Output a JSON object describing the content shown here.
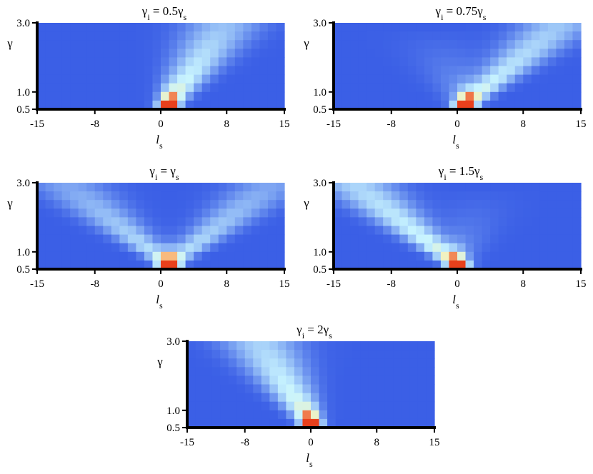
{
  "chart_data": [
    {
      "type": "heatmap",
      "title": {
        "pre": "γ",
        "sub1": "i",
        "mid": " = 0.5γ",
        "sub2": "s"
      },
      "xlabel": {
        "main": "l",
        "sub": "s"
      },
      "ylabel": "γ",
      "xticks": [
        "-15",
        "-8",
        "0",
        "8",
        "15"
      ],
      "yticks": [
        "0.5",
        "1.0",
        "3.0"
      ],
      "xlim": [
        -15,
        15
      ],
      "ylim": [
        0.5,
        3.0
      ],
      "peak_l": 1,
      "shape": "right-leaning",
      "colors": {
        "low": "#3b5fe6",
        "mid": "#c8f4ff",
        "high": "#e8401c"
      }
    },
    {
      "type": "heatmap",
      "title": {
        "pre": "γ",
        "sub1": "i",
        "mid": " = 0.75γ",
        "sub2": "s"
      },
      "xlabel": {
        "main": "l",
        "sub": "s"
      },
      "ylabel": "γ",
      "xticks": [
        "-15",
        "-8",
        "0",
        "8",
        "15"
      ],
      "yticks": [
        "0.5",
        "1.0",
        "3.0"
      ],
      "xlim": [
        -15,
        15
      ],
      "ylim": [
        0.5,
        3.0
      ],
      "peak_l": 1,
      "shape": "right-fan",
      "colors": {
        "low": "#3b5fe6",
        "mid": "#c8f4ff",
        "high": "#e8401c"
      }
    },
    {
      "type": "heatmap",
      "title": {
        "pre": "γ",
        "sub1": "i",
        "mid": " = γ",
        "sub2": "s"
      },
      "xlabel": {
        "main": "l",
        "sub": "s"
      },
      "ylabel": "γ",
      "xticks": [
        "-15",
        "-8",
        "0",
        "8",
        "15"
      ],
      "yticks": [
        "0.5",
        "1.0",
        "3.0"
      ],
      "xlim": [
        -15,
        15
      ],
      "ylim": [
        0.5,
        3.0
      ],
      "peak_l": 1,
      "shape": "symmetric-v",
      "colors": {
        "low": "#3b5fe6",
        "mid": "#c8f4ff",
        "high": "#e8401c"
      }
    },
    {
      "type": "heatmap",
      "title": {
        "pre": "γ",
        "sub1": "i",
        "mid": " = 1.5γ",
        "sub2": "s"
      },
      "xlabel": {
        "main": "l",
        "sub": "s"
      },
      "ylabel": "γ",
      "xticks": [
        "-15",
        "-8",
        "0",
        "8",
        "15"
      ],
      "yticks": [
        "0.5",
        "1.0",
        "3.0"
      ],
      "xlim": [
        -15,
        15
      ],
      "ylim": [
        0.5,
        3.0
      ],
      "peak_l": 0,
      "shape": "left-fan",
      "colors": {
        "low": "#3b5fe6",
        "mid": "#c8f4ff",
        "high": "#e8401c"
      }
    },
    {
      "type": "heatmap",
      "title": {
        "pre": "γ",
        "sub1": "i",
        "mid": " = 2γ",
        "sub2": "s"
      },
      "xlabel": {
        "main": "l",
        "sub": "s"
      },
      "ylabel": "γ",
      "xticks": [
        "-15",
        "-8",
        "0",
        "8",
        "15"
      ],
      "yticks": [
        "0.5",
        "1.0",
        "3.0"
      ],
      "xlim": [
        -15,
        15
      ],
      "ylim": [
        0.5,
        3.0
      ],
      "peak_l": 0,
      "shape": "left-leaning",
      "colors": {
        "low": "#3b5fe6",
        "mid": "#c8f4ff",
        "high": "#e8401c"
      }
    }
  ]
}
